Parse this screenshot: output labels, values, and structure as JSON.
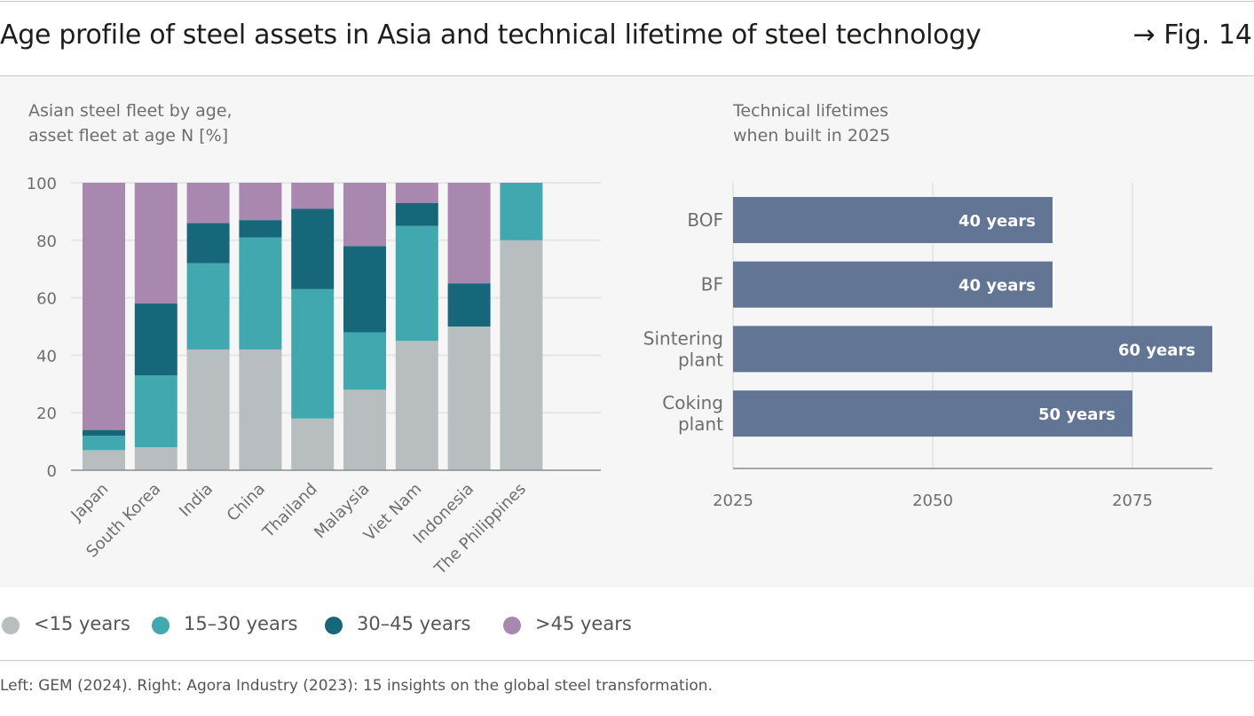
{
  "header": {
    "title": "Age profile of steel assets in Asia and technical lifetime of steel technology",
    "figure_ref": "→ Fig. 14"
  },
  "colors": {
    "lt15": "#b8bdc0",
    "y15_30": "#41a8b0",
    "y30_45": "#17677a",
    "gt45": "#a988b0",
    "lifetime_bar": "#627595",
    "axis_text": "#6e6e6e",
    "grid": "#e6e6e6"
  },
  "chart_data": [
    {
      "type": "bar",
      "stacked": true,
      "title": "Asian steel fleet by age,",
      "subtitle": "asset fleet at age N [%]",
      "categories": [
        "Japan",
        "South Korea",
        "India",
        "China",
        "Thailand",
        "Malaysia",
        "Viet Nam",
        "Indonesia",
        "The Philippines"
      ],
      "series": [
        {
          "name": "<15 years",
          "color_key": "lt15",
          "values": [
            7,
            8,
            42,
            42,
            18,
            28,
            45,
            50,
            80
          ]
        },
        {
          "name": "15–30 years",
          "color_key": "y15_30",
          "values": [
            5,
            25,
            30,
            39,
            45,
            20,
            40,
            0,
            20
          ]
        },
        {
          "name": "30–45 years",
          "color_key": "y30_45",
          "values": [
            2,
            25,
            14,
            6,
            28,
            30,
            8,
            15,
            0
          ]
        },
        {
          "name": ">45 years",
          "color_key": "gt45",
          "values": [
            86,
            42,
            14,
            13,
            9,
            22,
            7,
            35,
            0
          ]
        }
      ],
      "yticks": [
        0,
        20,
        40,
        60,
        80,
        100
      ],
      "ylim": [
        0,
        100
      ],
      "xlabel": "",
      "ylabel": ""
    },
    {
      "type": "bar",
      "orientation": "horizontal",
      "title": "Technical lifetimes",
      "subtitle": "when built in 2025",
      "categories": [
        {
          "line1": "BOF",
          "line2": ""
        },
        {
          "line1": "BF",
          "line2": ""
        },
        {
          "line1": "Sintering",
          "line2": "plant"
        },
        {
          "line1": "Coking",
          "line2": "plant"
        }
      ],
      "start_year": 2025,
      "values": [
        40,
        40,
        60,
        50
      ],
      "value_labels": [
        "40 years",
        "40 years",
        "60 years",
        "50 years"
      ],
      "xticks": [
        2025,
        2050,
        2075
      ],
      "xlim": [
        2025,
        2085
      ]
    }
  ],
  "legend": [
    {
      "label": "<15 years",
      "color_key": "lt15"
    },
    {
      "label": "15–30 years",
      "color_key": "y15_30"
    },
    {
      "label": "30–45 years",
      "color_key": "y30_45"
    },
    {
      "label": ">45 years",
      "color_key": "gt45"
    }
  ],
  "source": "Left: GEM (2024). Right: Agora Industry (2023): 15 insights on the global steel transformation."
}
